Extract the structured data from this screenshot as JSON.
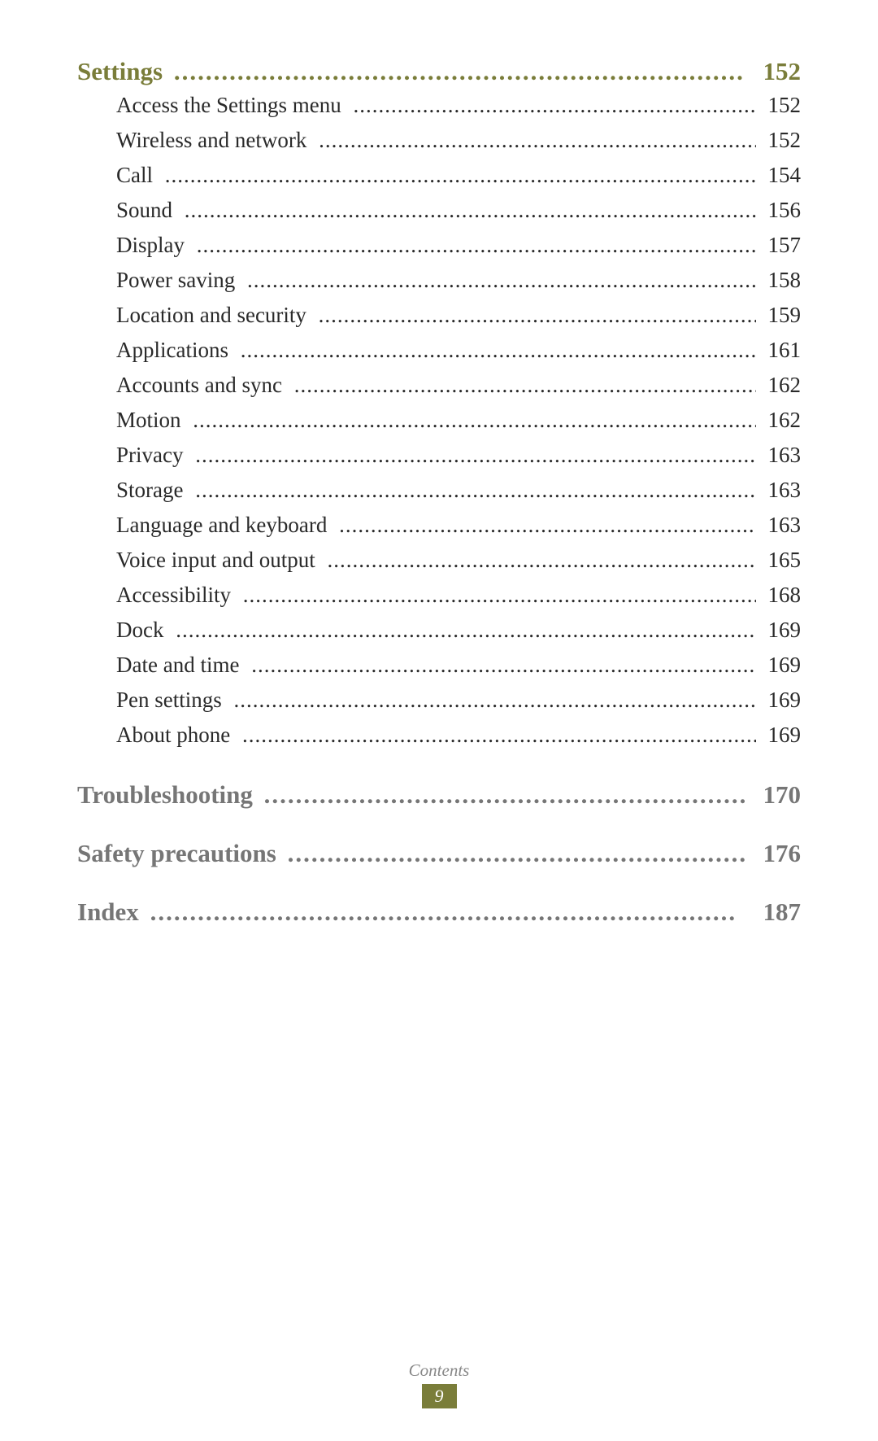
{
  "sections": [
    {
      "title": "Settings",
      "page": "152",
      "color": "#7a7d3a",
      "items": [
        {
          "title": "Access the Settings menu",
          "page": "152"
        },
        {
          "title": "Wireless and network",
          "page": "152"
        },
        {
          "title": "Call",
          "page": "154"
        },
        {
          "title": "Sound",
          "page": "156"
        },
        {
          "title": "Display",
          "page": "157"
        },
        {
          "title": "Power saving",
          "page": "158"
        },
        {
          "title": "Location and security",
          "page": "159"
        },
        {
          "title": "Applications",
          "page": "161"
        },
        {
          "title": "Accounts and sync",
          "page": "162"
        },
        {
          "title": "Motion",
          "page": "162"
        },
        {
          "title": "Privacy",
          "page": "163"
        },
        {
          "title": "Storage",
          "page": "163"
        },
        {
          "title": "Language and keyboard",
          "page": "163"
        },
        {
          "title": "Voice input and output",
          "page": "165"
        },
        {
          "title": "Accessibility",
          "page": "168"
        },
        {
          "title": "Dock",
          "page": "169"
        },
        {
          "title": "Date and time",
          "page": "169"
        },
        {
          "title": "Pen settings",
          "page": "169"
        },
        {
          "title": "About phone",
          "page": "169"
        }
      ]
    },
    {
      "title": "Troubleshooting",
      "page": "170",
      "color": "#767676"
    },
    {
      "title": "Safety precautions",
      "page": "176",
      "color": "#767676"
    },
    {
      "title": "Index",
      "page": "187",
      "color": "#767676"
    }
  ],
  "footer": {
    "label": "Contents",
    "page": "9"
  },
  "style": {
    "section_dots": "..........................................................................",
    "item_dots": "..............................................................................................................................................."
  }
}
